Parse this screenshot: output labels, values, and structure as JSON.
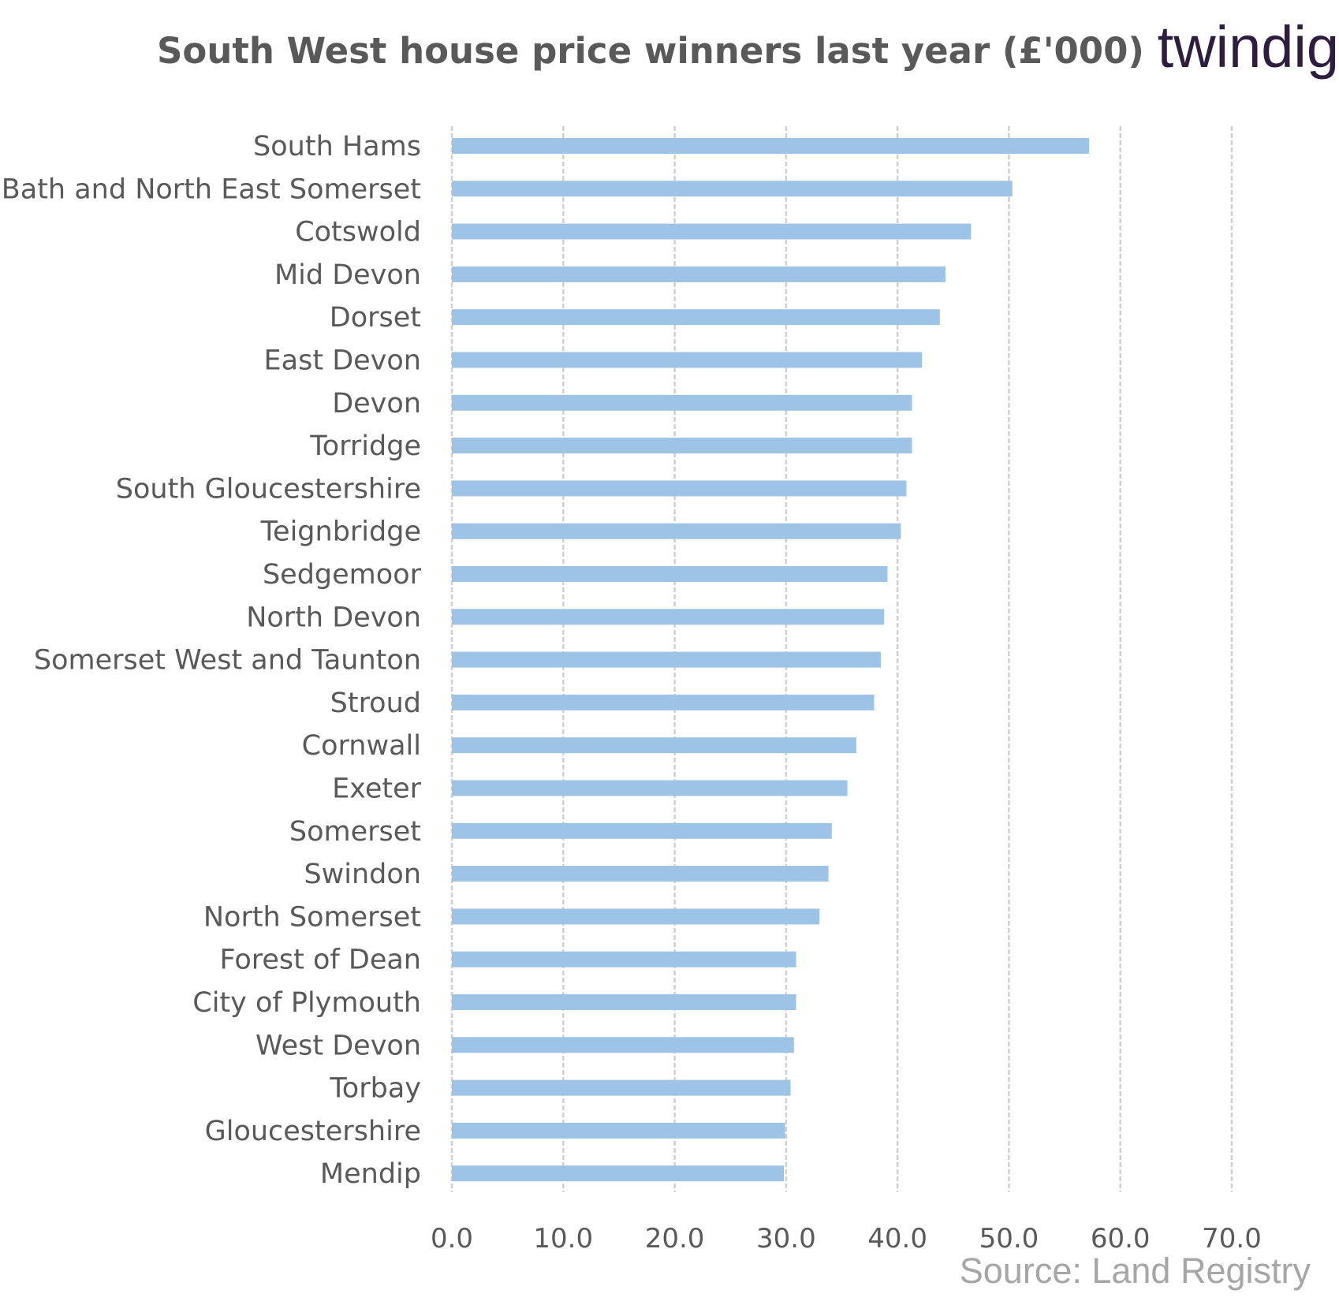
{
  "logo": {
    "text": "twindig"
  },
  "source": "Source: Land Registry",
  "colors": {
    "bar": "#9dc3e6",
    "grid": "#d0d0d0",
    "text": "#595959",
    "logo_accent": "#f28c28"
  },
  "chart_data": {
    "type": "bar",
    "orientation": "horizontal",
    "title": "South West house price winners last year (£'000)",
    "xlabel": "",
    "ylabel": "",
    "xlim": [
      0,
      70
    ],
    "xticks": [
      "0.0",
      "10.0",
      "20.0",
      "30.0",
      "40.0",
      "50.0",
      "60.0",
      "70.0"
    ],
    "grid": "vertical dashed",
    "categories": [
      "South Hams",
      "Bath and North East Somerset",
      "Cotswold",
      "Mid Devon",
      "Dorset",
      "East Devon",
      "Devon",
      "Torridge",
      "South Gloucestershire",
      "Teignbridge",
      "Sedgemoor",
      "North Devon",
      "Somerset West and Taunton",
      "Stroud",
      "Cornwall",
      "Exeter",
      "Somerset",
      "Swindon",
      "North Somerset",
      "Forest of Dean",
      "City of Plymouth",
      "West Devon",
      "Torbay",
      "Gloucestershire",
      "Mendip"
    ],
    "values": [
      57.2,
      50.3,
      46.6,
      44.3,
      43.8,
      42.2,
      41.3,
      41.3,
      40.8,
      40.3,
      39.1,
      38.8,
      38.5,
      37.9,
      36.3,
      35.5,
      34.1,
      33.8,
      33.0,
      30.9,
      30.9,
      30.7,
      30.4,
      29.9,
      29.8
    ]
  }
}
